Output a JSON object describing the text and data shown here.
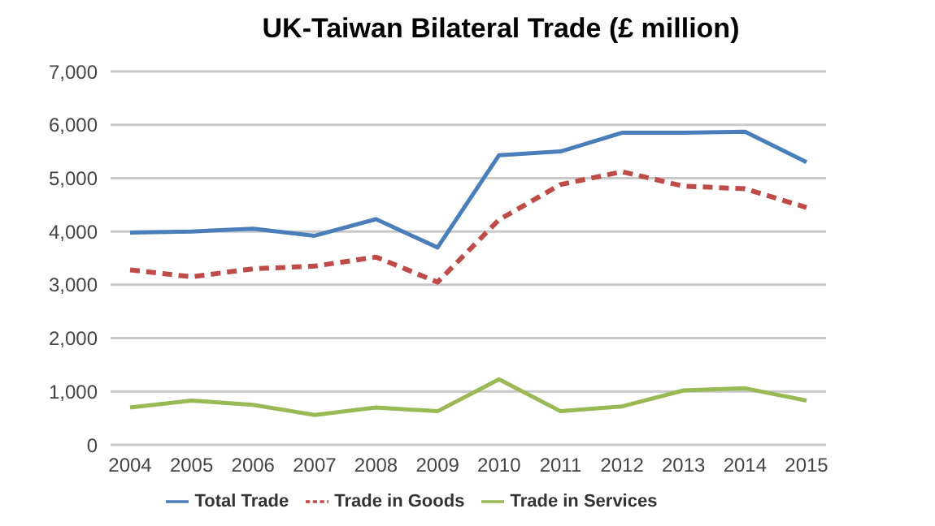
{
  "chart_data": {
    "type": "line",
    "title": "UK-Taiwan Bilateral Trade (£ million)",
    "categories": [
      "2004",
      "2005",
      "2006",
      "2007",
      "2008",
      "2009",
      "2010",
      "2011",
      "2012",
      "2013",
      "2014",
      "2015"
    ],
    "series": [
      {
        "name": "Total Trade",
        "color": "#4a7ebb",
        "line_style": "solid",
        "values": [
          3980,
          4000,
          4050,
          3920,
          4230,
          3700,
          5430,
          5500,
          5850,
          5850,
          5870,
          5300
        ]
      },
      {
        "name": "Trade in Goods",
        "color": "#be4b48",
        "line_style": "dashed",
        "values": [
          3280,
          3150,
          3300,
          3350,
          3520,
          3050,
          4220,
          4880,
          5120,
          4850,
          4800,
          4450
        ]
      },
      {
        "name": "Trade in Services",
        "color": "#98b954",
        "line_style": "solid",
        "values": [
          700,
          830,
          750,
          560,
          700,
          630,
          1230,
          630,
          720,
          1020,
          1060,
          830
        ]
      }
    ],
    "ylim": [
      0,
      7000
    ],
    "yticks": [
      {
        "value": 0,
        "label": "0"
      },
      {
        "value": 1000,
        "label": "1,000"
      },
      {
        "value": 2000,
        "label": "2,000"
      },
      {
        "value": 3000,
        "label": "3,000"
      },
      {
        "value": 4000,
        "label": "4,000"
      },
      {
        "value": 5000,
        "label": "5,000"
      },
      {
        "value": 6000,
        "label": "6,000"
      },
      {
        "value": 7000,
        "label": "7,000"
      }
    ],
    "grid": "y",
    "legend": "bottom",
    "marker": "none"
  }
}
